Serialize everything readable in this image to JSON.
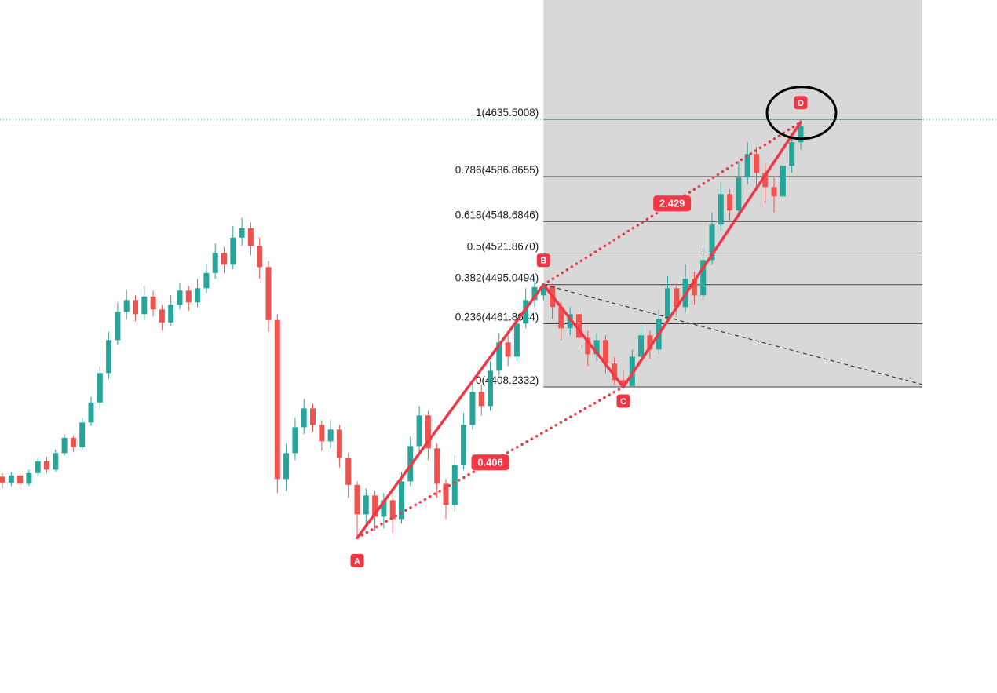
{
  "chart_data": {
    "type": "candlestick",
    "description": "Candlestick price chart with ABCD harmonic pattern, trend-based Fibonacci extension zone and circled D completion point",
    "colors": {
      "up": "#26a69a",
      "down": "#ef5350",
      "pattern": "#f23645",
      "zone_fill": "#d8d8d8",
      "fib_line": "#424242",
      "fib_label_text": "#1c1c1c",
      "price_line": "#26a69a",
      "dashed_line": "#3a3a3a",
      "ellipse": "#000000",
      "marker_text": "#ffffff"
    },
    "fib_levels": [
      {
        "label": "1(4635.5008)",
        "ratio": 1,
        "price": 4635.5008
      },
      {
        "label": "0.786(4586.8655)",
        "ratio": 0.786,
        "price": 4586.8655
      },
      {
        "label": "0.618(4548.6846)",
        "ratio": 0.618,
        "price": 4548.6846
      },
      {
        "label": "0.5(4521.8670)",
        "ratio": 0.5,
        "price": 4521.867
      },
      {
        "label": "0.382(4495.0494)",
        "ratio": 0.382,
        "price": 4495.0494
      },
      {
        "label": "0.236(4461.8684)",
        "ratio": 0.236,
        "price": 4461.8684
      },
      {
        "label": "0(4408.2332)",
        "ratio": 0,
        "price": 4408.2332
      }
    ],
    "price_line_value": 4635.5008,
    "pattern": {
      "points": [
        {
          "name": "A",
          "index": 40,
          "price": 4280
        },
        {
          "name": "B",
          "index": 61,
          "price": 4495.0494
        },
        {
          "name": "C",
          "index": 70,
          "price": 4408.2332
        },
        {
          "name": "D",
          "index": 90,
          "price": 4633
        }
      ],
      "ratio_labels": [
        {
          "text": "0.406",
          "between": "AC"
        },
        {
          "text": "2.429",
          "between": "BD"
        }
      ]
    },
    "candles": [
      [
        4332,
        4335,
        4322,
        4327
      ],
      [
        4327,
        4336,
        4324,
        4333
      ],
      [
        4333,
        4335,
        4321,
        4326
      ],
      [
        4326,
        4338,
        4324,
        4335
      ],
      [
        4335,
        4348,
        4333,
        4345
      ],
      [
        4345,
        4349,
        4335,
        4338
      ],
      [
        4338,
        4355,
        4336,
        4352
      ],
      [
        4352,
        4368,
        4350,
        4365
      ],
      [
        4365,
        4367,
        4353,
        4357
      ],
      [
        4357,
        4382,
        4355,
        4378
      ],
      [
        4378,
        4400,
        4375,
        4395
      ],
      [
        4395,
        4426,
        4390,
        4420
      ],
      [
        4420,
        4455,
        4415,
        4448
      ],
      [
        4448,
        4480,
        4444,
        4472
      ],
      [
        4472,
        4490,
        4466,
        4482
      ],
      [
        4482,
        4486,
        4464,
        4470
      ],
      [
        4470,
        4494,
        4465,
        4485
      ],
      [
        4485,
        4490,
        4468,
        4474
      ],
      [
        4474,
        4478,
        4456,
        4463
      ],
      [
        4463,
        4486,
        4460,
        4478
      ],
      [
        4478,
        4497,
        4474,
        4490
      ],
      [
        4490,
        4494,
        4473,
        4480
      ],
      [
        4480,
        4500,
        4476,
        4492
      ],
      [
        4492,
        4513,
        4488,
        4505
      ],
      [
        4505,
        4530,
        4500,
        4522
      ],
      [
        4522,
        4527,
        4505,
        4512
      ],
      [
        4512,
        4545,
        4508,
        4535
      ],
      [
        4535,
        4552,
        4528,
        4543
      ],
      [
        4543,
        4548,
        4520,
        4528
      ],
      [
        4528,
        4535,
        4500,
        4510
      ],
      [
        4510,
        4515,
        4455,
        4465
      ],
      [
        4465,
        4470,
        4318,
        4330
      ],
      [
        4330,
        4360,
        4320,
        4352
      ],
      [
        4352,
        4382,
        4346,
        4374
      ],
      [
        4374,
        4398,
        4368,
        4390
      ],
      [
        4390,
        4394,
        4370,
        4376
      ],
      [
        4376,
        4380,
        4354,
        4362
      ],
      [
        4362,
        4380,
        4356,
        4372
      ],
      [
        4372,
        4376,
        4340,
        4348
      ],
      [
        4348,
        4352,
        4314,
        4325
      ],
      [
        4325,
        4328,
        4282,
        4300
      ],
      [
        4300,
        4322,
        4290,
        4316
      ],
      [
        4316,
        4320,
        4286,
        4298
      ],
      [
        4298,
        4318,
        4288,
        4312
      ],
      [
        4312,
        4316,
        4284,
        4296
      ],
      [
        4296,
        4336,
        4292,
        4328
      ],
      [
        4328,
        4366,
        4324,
        4358
      ],
      [
        4358,
        4392,
        4352,
        4384
      ],
      [
        4384,
        4388,
        4346,
        4356
      ],
      [
        4356,
        4360,
        4314,
        4326
      ],
      [
        4326,
        4330,
        4296,
        4308
      ],
      [
        4308,
        4350,
        4302,
        4342
      ],
      [
        4342,
        4386,
        4338,
        4376
      ],
      [
        4376,
        4412,
        4372,
        4404
      ],
      [
        4404,
        4410,
        4384,
        4392
      ],
      [
        4392,
        4430,
        4388,
        4422
      ],
      [
        4422,
        4454,
        4418,
        4446
      ],
      [
        4446,
        4452,
        4426,
        4434
      ],
      [
        4434,
        4470,
        4430,
        4462
      ],
      [
        4462,
        4492,
        4458,
        4482
      ],
      [
        4482,
        4502,
        4476,
        4493
      ],
      [
        4486,
        4495.05,
        4482,
        4494
      ],
      [
        4494,
        4496,
        4466,
        4476
      ],
      [
        4476,
        4480,
        4448,
        4458
      ],
      [
        4458,
        4476,
        4452,
        4470
      ],
      [
        4470,
        4474,
        4442,
        4450
      ],
      [
        4450,
        4456,
        4426,
        4436
      ],
      [
        4436,
        4454,
        4430,
        4448
      ],
      [
        4448,
        4452,
        4420,
        4428
      ],
      [
        4428,
        4434,
        4410,
        4414
      ],
      [
        4414,
        4422,
        4408.23,
        4409
      ],
      [
        4409,
        4440,
        4409,
        4434
      ],
      [
        4434,
        4460,
        4430,
        4452
      ],
      [
        4452,
        4456,
        4432,
        4440
      ],
      [
        4440,
        4474,
        4436,
        4466
      ],
      [
        4466,
        4502,
        4462,
        4492
      ],
      [
        4492,
        4496,
        4468,
        4476
      ],
      [
        4476,
        4512,
        4472,
        4500
      ],
      [
        4500,
        4506,
        4478,
        4486
      ],
      [
        4486,
        4526,
        4482,
        4516
      ],
      [
        4516,
        4556,
        4512,
        4546
      ],
      [
        4546,
        4582,
        4540,
        4572
      ],
      [
        4572,
        4576,
        4548,
        4558
      ],
      [
        4558,
        4600,
        4554,
        4586
      ],
      [
        4586,
        4616,
        4580,
        4606
      ],
      [
        4606,
        4612,
        4576,
        4590
      ],
      [
        4590,
        4598,
        4564,
        4578
      ],
      [
        4578,
        4586,
        4556,
        4570
      ],
      [
        4570,
        4606,
        4566,
        4596
      ],
      [
        4596,
        4624,
        4590,
        4616
      ],
      [
        4616,
        4635.5,
        4610,
        4630
      ]
    ]
  }
}
